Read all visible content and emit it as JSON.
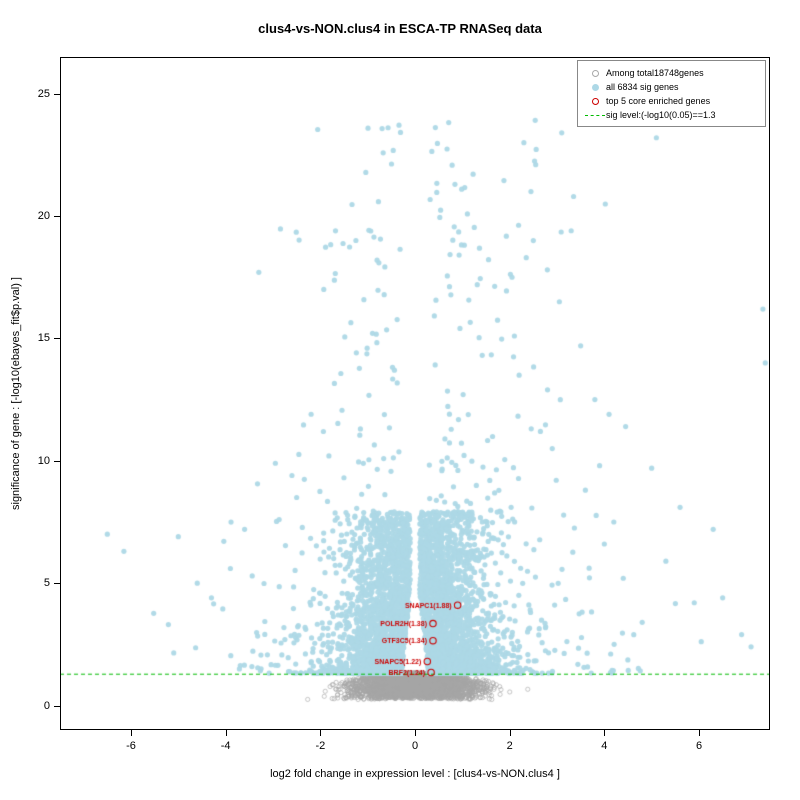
{
  "chart_data": {
    "type": "scatter",
    "title": "clus4-vs-NON.clus4 in ESCA-TP RNASeq data",
    "xlabel": "log2 fold change in expression level : [clus4-vs-NON.clus4 ]",
    "ylabel": "significance of gene : [-log10(ebayes_fit$p.val) ]",
    "xlim": [
      -7.5,
      7.5
    ],
    "ylim": [
      -1,
      26.5
    ],
    "xticks": [
      -6,
      -4,
      -2,
      0,
      2,
      4,
      6
    ],
    "yticks": [
      0,
      5,
      10,
      15,
      20,
      25
    ],
    "grid": false,
    "legend_position": "top-right",
    "total_genes": 18748,
    "sig_genes": 6834,
    "core_enriched_genes": 5,
    "colors": {
      "background_gene": "#a8a8a8",
      "sig_gene": "#add8e6",
      "core_gene": "#cc0000",
      "sig_line": "#00bb00",
      "axis": "#000000"
    },
    "legend": [
      {
        "label": "Among total18748genes",
        "marker": "open-circle",
        "color": "#a8a8a8"
      },
      {
        "label": "all 6834 sig genes",
        "marker": "filled-circle",
        "color": "#add8e6"
      },
      {
        "label": "top 5 core enriched genes",
        "marker": "open-circle",
        "color": "#cc0000"
      },
      {
        "label": "sig level:(-log10(0.05)==1.3",
        "marker": "dashed-line",
        "color": "#00bb00"
      }
    ],
    "sig_line": {
      "y": 1.3,
      "style": "dashed",
      "color": "#00bb00"
    },
    "core_gene_points": [
      {
        "gene": "SNAPC1",
        "score": 1.88,
        "label": "SNAPC1(1.88)",
        "x": 0.9,
        "y": 4.1
      },
      {
        "gene": "POLR2H",
        "score": 1.38,
        "label": "POLR2H(1.38)",
        "x": 0.38,
        "y": 3.35
      },
      {
        "gene": "GTF3C5",
        "score": 1.34,
        "label": "GTF3C5(1.34)",
        "x": 0.38,
        "y": 2.65
      },
      {
        "gene": "SNAPC5",
        "score": 1.22,
        "label": "SNAPC5(1.22)",
        "x": 0.26,
        "y": 1.8
      },
      {
        "gene": "BRF2",
        "score": 1.24,
        "label": "BRF2(1.24)",
        "x": 0.34,
        "y": 1.35
      }
    ],
    "generator": {
      "seed": 1337,
      "background": {
        "count": 3800,
        "x_sigma": 0.62,
        "x_clip": 2.45,
        "y_floor": 0.05,
        "y_ceiling": 1.3,
        "y_falloff": 8,
        "y_pow": 0.8,
        "y_frac_min": 0.18
      },
      "sig_lobes": {
        "count": 5200,
        "right_bias": 0.53,
        "y_base": 1.32,
        "y_span": 6.6,
        "y_pow": 2.2,
        "notch_top": 4.6,
        "notch_slope": 0.055,
        "inner_min": 0.1,
        "x_scale": 0.62,
        "x_scale_wide": 1.5,
        "wide_frac": 0.15,
        "x_clip": 7.45
      },
      "sig_high": {
        "count": 210,
        "right_bias": 0.58,
        "y_base": 7.5,
        "y_span": 16.5,
        "y_pow": 1.6,
        "x_offset": 0.3,
        "x_scale": 1.1,
        "x_clip": 7.45
      },
      "sig_outliers": [
        [
          -6.5,
          7.0
        ],
        [
          -6.15,
          6.3
        ],
        [
          -5.0,
          6.9
        ],
        [
          -4.6,
          5.0
        ],
        [
          -4.3,
          4.4
        ],
        [
          -3.9,
          5.6
        ],
        [
          -3.3,
          17.7
        ],
        [
          -3.6,
          7.2
        ],
        [
          -2.95,
          9.9
        ],
        [
          -2.6,
          9.4
        ],
        [
          -2.5,
          8.5
        ],
        [
          2.3,
          23.0
        ],
        [
          2.55,
          22.1
        ],
        [
          3.1,
          23.4
        ],
        [
          5.1,
          23.2
        ],
        [
          2.45,
          21.0
        ],
        [
          3.35,
          20.8
        ],
        [
          3.3,
          19.4
        ],
        [
          2.5,
          19.0
        ],
        [
          2.35,
          18.3
        ],
        [
          2.05,
          17.5
        ],
        [
          3.05,
          16.5
        ],
        [
          2.1,
          15.1
        ],
        [
          3.5,
          14.7
        ],
        [
          2.2,
          13.5
        ],
        [
          2.8,
          12.9
        ],
        [
          3.8,
          12.5
        ],
        [
          4.1,
          11.9
        ],
        [
          4.45,
          11.4
        ],
        [
          2.65,
          11.2
        ],
        [
          2.9,
          10.5
        ],
        [
          3.9,
          9.8
        ],
        [
          5.0,
          9.7
        ],
        [
          3.6,
          8.8
        ],
        [
          5.6,
          8.1
        ],
        [
          4.2,
          7.5
        ],
        [
          6.3,
          7.2
        ],
        [
          4.0,
          6.6
        ],
        [
          5.3,
          5.9
        ],
        [
          4.4,
          5.2
        ],
        [
          6.5,
          4.4
        ],
        [
          5.9,
          4.2
        ],
        [
          4.8,
          3.4
        ],
        [
          6.9,
          2.9
        ],
        [
          7.1,
          2.4
        ],
        [
          7.35,
          16.2
        ],
        [
          7.4,
          14.0
        ]
      ]
    }
  }
}
